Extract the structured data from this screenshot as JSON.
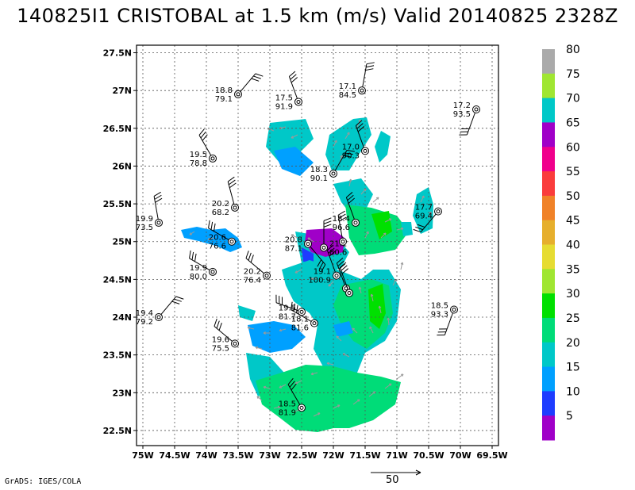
{
  "title": "140825I1 CRISTOBAL at 1.5 km (m/s) Valid 20140825 2328Z",
  "credit": "GrADS: IGES/COLA",
  "reference_vector_label": "50",
  "axes": {
    "lon_labels": [
      "75W",
      "74.5W",
      "74W",
      "73.5W",
      "73W",
      "72.5W",
      "72W",
      "71.5W",
      "71W",
      "70.5W",
      "70W",
      "69.5W"
    ],
    "lat_labels": [
      "22.5N",
      "23N",
      "23.5N",
      "24N",
      "24.5N",
      "25N",
      "25.5N",
      "26N",
      "26.5N",
      "27N",
      "27.5N"
    ]
  },
  "colorbar": {
    "labels": [
      "5",
      "10",
      "15",
      "20",
      "25",
      "30",
      "35",
      "40",
      "45",
      "50",
      "55",
      "60",
      "65",
      "70",
      "75",
      "80"
    ],
    "colors": [
      "#a000c8",
      "#1e3cff",
      "#00a0ff",
      "#00c8c8",
      "#00dc78",
      "#00e000",
      "#a0e632",
      "#e6dc32",
      "#e6af2d",
      "#f08228",
      "#fa3c3c",
      "#f0008c",
      "#a000c8",
      "#00c8c8",
      "#a0e632",
      "#aaaaaa"
    ]
  },
  "chart_data": {
    "type": "map",
    "title": "140825I1 CRISTOBAL at 1.5 km (m/s) Valid 20140825 2328Z",
    "lon_range": [
      -75.1,
      -69.4
    ],
    "lat_range": [
      22.3,
      27.6
    ],
    "grid": true,
    "colorbar_placement": "right",
    "stations": [
      {
        "lon": -73.5,
        "lat": 26.95,
        "l1": "18.8",
        "l2": "79.1",
        "side": "left"
      },
      {
        "lon": -72.55,
        "lat": 26.85,
        "l1": "17.5",
        "l2": "91.9",
        "side": "left"
      },
      {
        "lon": -71.55,
        "lat": 27.0,
        "l1": "17.1",
        "l2": "84.5",
        "side": "left"
      },
      {
        "lon": -69.75,
        "lat": 26.75,
        "l1": "17.2",
        "l2": "93.5",
        "side": "left"
      },
      {
        "lon": -73.9,
        "lat": 26.1,
        "l1": "19.5",
        "l2": "78.8",
        "side": "left"
      },
      {
        "lon": -71.5,
        "lat": 26.2,
        "l1": "17.0",
        "l2": "90.3",
        "side": "left"
      },
      {
        "lon": -72.0,
        "lat": 25.9,
        "l1": "18.3",
        "l2": "90.1",
        "side": "left"
      },
      {
        "lon": -73.55,
        "lat": 25.45,
        "l1": "20.2",
        "l2": "68.2",
        "side": "left"
      },
      {
        "lon": -74.75,
        "lat": 25.25,
        "l1": "19.9",
        "l2": "73.5",
        "side": "left"
      },
      {
        "lon": -70.35,
        "lat": 25.4,
        "l1": "17.7",
        "l2": "69.4",
        "side": "left"
      },
      {
        "lon": -71.65,
        "lat": 25.25,
        "l1": "18.4",
        "l2": "96.6",
        "side": "left"
      },
      {
        "lon": -73.6,
        "lat": 25.0,
        "l1": "20.6",
        "l2": "76.6",
        "side": "left"
      },
      {
        "lon": -72.4,
        "lat": 24.97,
        "l1": "20.8",
        "l2": "87.1",
        "side": "left"
      },
      {
        "lon": -72.15,
        "lat": 24.92,
        "l1": "21.1",
        "l2": "80.6",
        "side": "right"
      },
      {
        "lon": -71.85,
        "lat": 25.0,
        "l1": "",
        "l2": "",
        "side": "left"
      },
      {
        "lon": -73.9,
        "lat": 24.6,
        "l1": "19.9",
        "l2": "80.0",
        "side": "left"
      },
      {
        "lon": -73.05,
        "lat": 24.55,
        "l1": "20.2",
        "l2": "76.4",
        "side": "left"
      },
      {
        "lon": -71.95,
        "lat": 24.55,
        "l1": "19.1",
        "l2": "100.9",
        "side": "left"
      },
      {
        "lon": -71.8,
        "lat": 24.38,
        "l1": "",
        "l2": "",
        "side": "left"
      },
      {
        "lon": -71.75,
        "lat": 24.32,
        "l1": "",
        "l2": "",
        "side": "left"
      },
      {
        "lon": -72.5,
        "lat": 24.07,
        "l1": "19.5",
        "l2": "81.7",
        "side": "left"
      },
      {
        "lon": -72.3,
        "lat": 23.92,
        "l1": "18.1",
        "l2": "81.6",
        "side": "left"
      },
      {
        "lon": -74.75,
        "lat": 24.0,
        "l1": "19.4",
        "l2": "79.2",
        "side": "left"
      },
      {
        "lon": -70.1,
        "lat": 24.1,
        "l1": "18.5",
        "l2": "93.3",
        "side": "left"
      },
      {
        "lon": -73.55,
        "lat": 23.65,
        "l1": "19.6",
        "l2": "75.5",
        "side": "left"
      },
      {
        "lon": -72.5,
        "lat": 22.8,
        "l1": "18.5",
        "l2": "81.9",
        "side": "left"
      }
    ]
  }
}
